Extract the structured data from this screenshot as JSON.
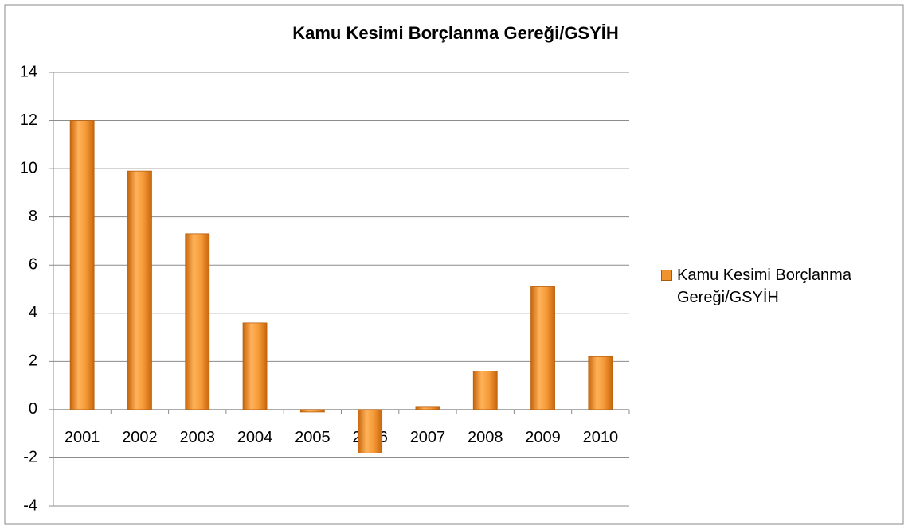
{
  "chart_data": {
    "type": "bar",
    "title": "Kamu Kesimi Borçlanma Gereği/GSYİH",
    "categories": [
      "2001",
      "2002",
      "2003",
      "2004",
      "2005",
      "2006",
      "2007",
      "2008",
      "2009",
      "2010"
    ],
    "series": [
      {
        "name": "Kamu Kesimi Borçlanma Gereği/GSYİH",
        "color": "#f0922e",
        "values": [
          12.0,
          9.9,
          7.3,
          3.6,
          -0.1,
          -1.8,
          0.1,
          1.6,
          5.1,
          2.2
        ]
      }
    ],
    "ylim": [
      -4,
      14
    ],
    "yticks": [
      -4,
      -2,
      0,
      2,
      4,
      6,
      8,
      10,
      12,
      14
    ],
    "grid": true,
    "legend": "right"
  }
}
